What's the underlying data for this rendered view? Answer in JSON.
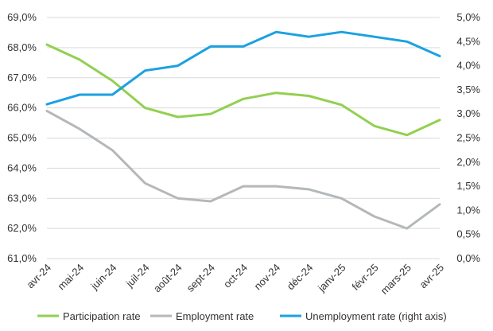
{
  "chart_data": {
    "type": "line",
    "title": "",
    "grid": true,
    "legend_position": "bottom",
    "categories": [
      "avr-24",
      "mai-24",
      "juin-24",
      "juil-24",
      "août-24",
      "sept-24",
      "oct-24",
      "nov-24",
      "déc-24",
      "janv-25",
      "févr-25",
      "mars-25",
      "avr-25"
    ],
    "left_axis": {
      "range": [
        61.0,
        69.0
      ],
      "ticks": [
        61.0,
        62.0,
        63.0,
        64.0,
        65.0,
        66.0,
        67.0,
        68.0,
        69.0
      ],
      "tick_labels": [
        "61,0%",
        "62,0%",
        "63,0%",
        "64,0%",
        "65,0%",
        "66,0%",
        "67,0%",
        "68,0%",
        "69,0%"
      ]
    },
    "right_axis": {
      "range": [
        0.0,
        5.0
      ],
      "ticks": [
        0.0,
        0.5,
        1.0,
        1.5,
        2.0,
        2.5,
        3.0,
        3.5,
        4.0,
        4.5,
        5.0
      ],
      "tick_labels": [
        "0,0%",
        "0,5%",
        "1,0%",
        "1,5%",
        "2,0%",
        "2,5%",
        "3,0%",
        "3,5%",
        "4,0%",
        "4,5%",
        "5,0%"
      ]
    },
    "series": [
      {
        "name": "Participation rate",
        "axis": "left",
        "color": "#92d050",
        "values": [
          68.1,
          67.6,
          66.9,
          66.0,
          65.7,
          65.8,
          66.3,
          66.5,
          66.4,
          66.1,
          65.4,
          65.1,
          65.6
        ]
      },
      {
        "name": "Employment rate",
        "axis": "left",
        "color": "#b4b8bb",
        "values": [
          65.9,
          65.3,
          64.6,
          63.5,
          63.0,
          62.9,
          63.4,
          63.4,
          63.3,
          63.0,
          62.4,
          62.0,
          62.8
        ]
      },
      {
        "name": "Unemployment rate (right axis)",
        "axis": "right",
        "color": "#1ba1e2",
        "values": [
          3.2,
          3.4,
          3.4,
          3.9,
          4.0,
          4.4,
          4.4,
          4.7,
          4.6,
          4.7,
          4.6,
          4.5,
          4.2
        ]
      }
    ]
  }
}
